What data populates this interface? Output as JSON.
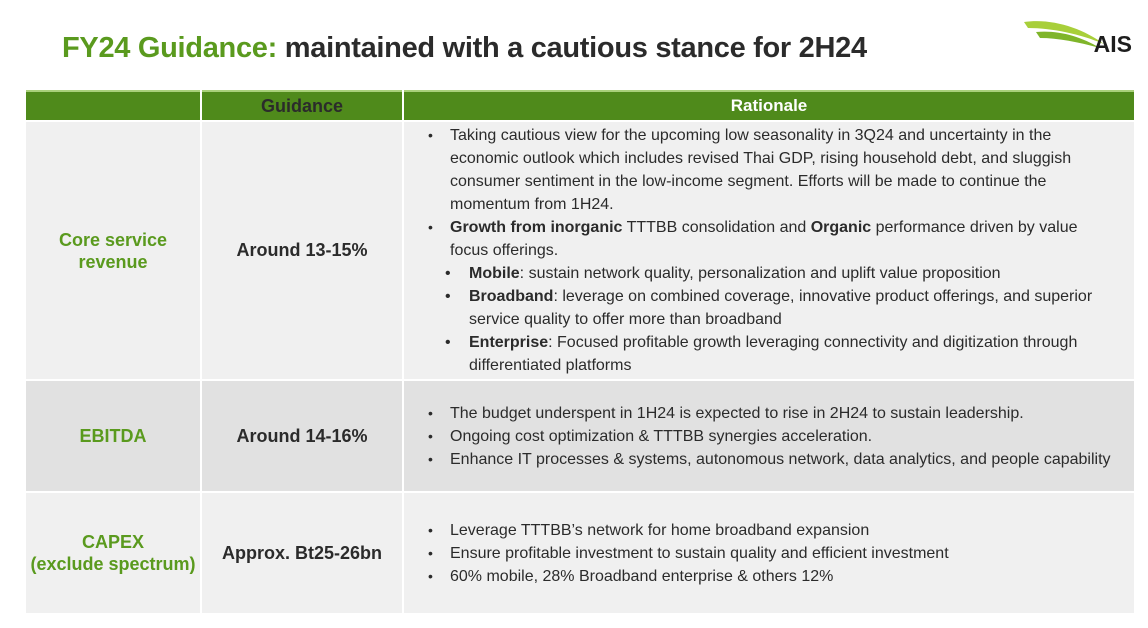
{
  "title": {
    "part1": "FY24 Guidance:",
    "part2": "maintained with a cautious stance for 2H24"
  },
  "logo": {
    "brand": "AIS",
    "icon": "ais-swoosh-logo",
    "colors": [
      "#a8cf3a",
      "#5a9a1e"
    ]
  },
  "table": {
    "headers": [
      "",
      "Guidance",
      "Rationale"
    ],
    "rows": [
      {
        "label": "Core service revenue",
        "guidance": "Around 13-15%",
        "bullets": [
          {
            "text": "Taking cautious view for the upcoming low seasonality in 3Q24 and uncertainty in the economic outlook which includes revised Thai GDP, rising household debt, and sluggish consumer sentiment in the low-income segment.  Efforts will be made to continue the momentum from 1H24."
          },
          {
            "b1": "Growth from inorganic",
            "t1": " TTTBB consolidation and ",
            "b2": "Organic",
            "t2": " performance driven by value focus offerings."
          }
        ],
        "sub_bullets": [
          {
            "bold": "Mobile",
            "text": ": sustain network quality, personalization and uplift value proposition"
          },
          {
            "bold": "Broadband",
            "text": ": leverage on combined coverage, innovative product offerings, and superior service quality to offer more than broadband"
          },
          {
            "bold": "Enterprise",
            "text": ": Focused profitable growth leveraging connectivity and digitization through differentiated platforms"
          }
        ]
      },
      {
        "label": "EBITDA",
        "guidance": "Around 14-16%",
        "bullets": [
          "The budget underspent in 1H24 is expected to rise in 2H24 to sustain leadership.",
          "Ongoing cost optimization & TTTBB synergies acceleration.",
          "Enhance IT processes & systems, autonomous network, data analytics, and people capability"
        ]
      },
      {
        "label_line1": "CAPEX",
        "label_line2": "(exclude spectrum)",
        "guidance": "Approx. Bt25-26bn",
        "bullets": [
          "Leverage TTTBB’s network for home broadband expansion",
          "Ensure profitable investment to sustain quality and efficient investment",
          "60% mobile, 28% Broadband enterprise & others 12%"
        ]
      }
    ]
  },
  "colors": {
    "accent_green": "#5a9a1e",
    "header_green": "#4f8a1b"
  }
}
